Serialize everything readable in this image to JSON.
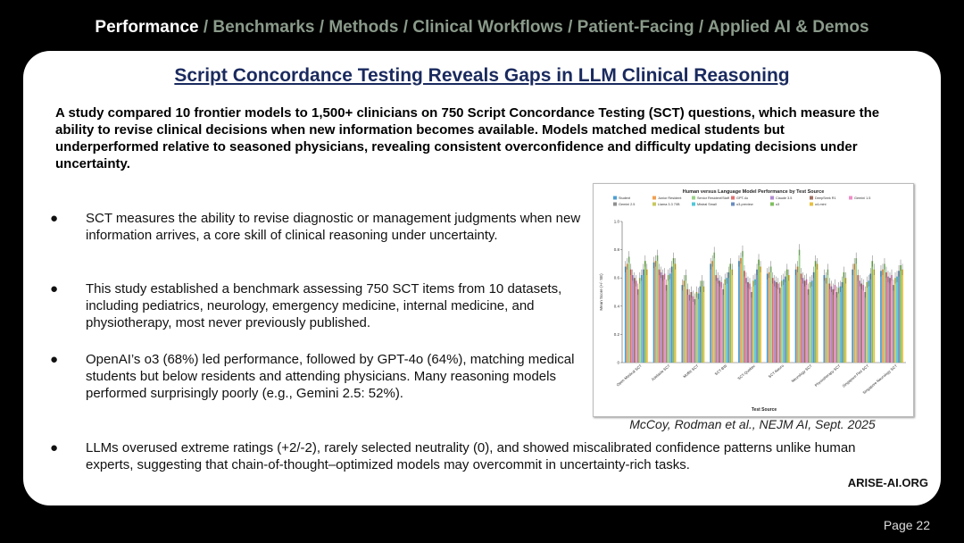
{
  "nav": {
    "active": "Performance",
    "rest": " / Benchmarks / Methods / Clinical Workflows / Patient-Facing / Applied AI & Demos"
  },
  "slide": {
    "title": "Script Concordance Testing Reveals Gaps in LLM Clinical Reasoning",
    "summary": "A study compared 10 frontier models to 1,500+ clinicians on 750 Script Concordance Testing (SCT) questions, which measure the ability to revise clinical decisions when new information becomes available. Models matched medical students but underperformed relative to seasoned physicians, revealing consistent overconfidence and difficulty updating decisions under uncertainty.",
    "bullets": [
      "SCT measures the ability to revise diagnostic or management judgments when new information arrives, a core skill of clinical reasoning under uncertainty.",
      "This study established a benchmark assessing 750 SCT items from 10 datasets, including pediatrics, neurology, emergency medicine, internal medicine, and physiotherapy, most never previously published.",
      "OpenAI’s o3 (68%) led performance, followed by GPT-4o (64%), matching medical students but below residents and attending physicians. Many reasoning models performed surprisingly poorly (e.g., Gemini 2.5: 52%).",
      "LLMs overused extreme ratings (+2/-2), rarely selected neutrality (0), and showed miscalibrated confidence patterns unlike human experts, suggesting that chain-of-thought–optimized models may overcommit in uncertainty-rich tasks."
    ],
    "bullet_symbol": "●",
    "caption": "McCoy, Rodman et al., NEJM AI, Sept. 2025",
    "brand": "ARISE-AI.ORG",
    "page": "Page 22"
  },
  "chart_data": {
    "type": "bar",
    "title": "Human versus Language Model Performance by Test Source",
    "xlabel": "Test Source",
    "ylabel": "Mean Score (+/- SE)",
    "ylim": [
      0,
      1.0
    ],
    "yticks": [
      "0",
      "0.2",
      "0.4",
      "0.6",
      "0.8",
      "1.0"
    ],
    "grid": false,
    "legend_position": "top",
    "categories": [
      "Open Medical SCT",
      "Adelaide SCT",
      "Moffitt SCT",
      "SCT-BW",
      "SCT-Quebec",
      "SCT-Neuro",
      "Neurology SCT",
      "Physiotherapy SCT",
      "Singapore Ped SCT",
      "Singapore Neurology SCT"
    ],
    "series": [
      {
        "name": "Student",
        "color": "#4c9fd3",
        "values": [
          0.68,
          0.71,
          0.55,
          0.7,
          0.72,
          0.63,
          0.66,
          0.62,
          0.66,
          0.65
        ]
      },
      {
        "name": "Junior Resident",
        "color": "#f0a050",
        "values": [
          0.7,
          0.72,
          0.58,
          0.72,
          0.74,
          0.64,
          0.68,
          0.6,
          0.7,
          0.66
        ]
      },
      {
        "name": "Senior Resident/Staff",
        "color": "#9ad08a",
        "values": [
          0.75,
          0.76,
          0.62,
          0.78,
          0.79,
          0.68,
          0.8,
          0.66,
          0.74,
          0.7
        ]
      },
      {
        "name": "GPT-4o",
        "color": "#e07070",
        "values": [
          0.66,
          0.66,
          0.52,
          0.62,
          0.65,
          0.6,
          0.63,
          0.56,
          0.62,
          0.64
        ]
      },
      {
        "name": "Claude 3.5",
        "color": "#b08ad0",
        "values": [
          0.62,
          0.64,
          0.48,
          0.6,
          0.6,
          0.58,
          0.6,
          0.54,
          0.58,
          0.61
        ]
      },
      {
        "name": "DeepSeek R1",
        "color": "#a07060",
        "values": [
          0.6,
          0.62,
          0.5,
          0.58,
          0.57,
          0.57,
          0.58,
          0.52,
          0.56,
          0.6
        ]
      },
      {
        "name": "Gemini 1.5",
        "color": "#f08cc8",
        "values": [
          0.58,
          0.63,
          0.47,
          0.57,
          0.56,
          0.56,
          0.59,
          0.55,
          0.55,
          0.62
        ]
      },
      {
        "name": "Gemini 2.5",
        "color": "#909090",
        "values": [
          0.52,
          0.55,
          0.45,
          0.52,
          0.5,
          0.53,
          0.52,
          0.5,
          0.5,
          0.55
        ]
      },
      {
        "name": "Llama 3.3 70B",
        "color": "#c8c860",
        "values": [
          0.6,
          0.62,
          0.5,
          0.59,
          0.58,
          0.58,
          0.57,
          0.53,
          0.57,
          0.6
        ]
      },
      {
        "name": "Mistral Small",
        "color": "#50c8d8",
        "values": [
          0.62,
          0.63,
          0.49,
          0.6,
          0.59,
          0.59,
          0.58,
          0.54,
          0.58,
          0.61
        ]
      },
      {
        "name": "o3-preview",
        "color": "#6a8cc0",
        "values": [
          0.66,
          0.68,
          0.54,
          0.64,
          0.66,
          0.61,
          0.64,
          0.57,
          0.63,
          0.65
        ]
      },
      {
        "name": "o3",
        "color": "#7fbf5f",
        "values": [
          0.72,
          0.74,
          0.58,
          0.7,
          0.73,
          0.66,
          0.72,
          0.64,
          0.72,
          0.69
        ]
      },
      {
        "name": "o4-mini",
        "color": "#e8c040",
        "values": [
          0.66,
          0.7,
          0.54,
          0.66,
          0.68,
          0.62,
          0.7,
          0.6,
          0.66,
          0.66
        ]
      }
    ]
  }
}
